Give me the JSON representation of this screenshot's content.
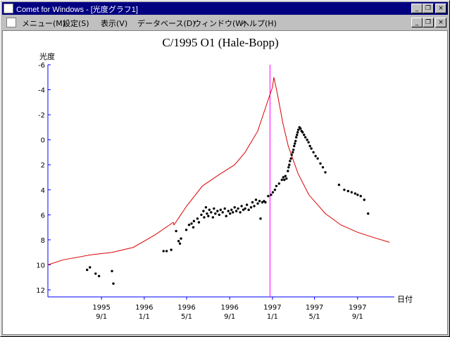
{
  "window": {
    "title": "Comet for Windows - [光度グラフ1]",
    "controls": {
      "minimize": "_",
      "restore": "❐",
      "close": "×"
    }
  },
  "menubar": {
    "items": [
      "メニュー(M)",
      "設定(S)",
      "表示(V)",
      "データベース(D)",
      "ウィンドウ(W)",
      "ヘルプ(H)"
    ]
  },
  "colors": {
    "magnitude_curve": "#dd0000",
    "axis": "#0000ff",
    "perihelion_line": "#ff00ff",
    "points": "#000000"
  },
  "chart_data": {
    "type": "scatter",
    "title": "C/1995 O1 (Hale-Bopp)",
    "ylabel": "光度",
    "xlabel": "日付",
    "ylim": [
      -6,
      12
    ],
    "y_inverted": true,
    "yticks": [
      "-6",
      "-4",
      "-2",
      "0",
      "2",
      "4",
      "6",
      "8",
      "10",
      "12"
    ],
    "xlim": [
      "1995-04-01",
      "1997-12-15"
    ],
    "xticks": [
      {
        "date": "1995-09-01",
        "year": "1995",
        "day": "9/1"
      },
      {
        "date": "1996-01-01",
        "year": "1996",
        "day": "1/1"
      },
      {
        "date": "1996-05-01",
        "year": "1996",
        "day": "5/1"
      },
      {
        "date": "1996-09-01",
        "year": "1996",
        "day": "9/1"
      },
      {
        "date": "1997-01-01",
        "year": "1997",
        "day": "1/1"
      },
      {
        "date": "1997-05-01",
        "year": "1997",
        "day": "5/1"
      },
      {
        "date": "1997-09-01",
        "year": "1997",
        "day": "9/1"
      }
    ],
    "perihelion_date": "1996-12-25",
    "predicted_curve": [
      [
        "1995-04-01",
        10.0
      ],
      [
        "1995-05-15",
        9.6
      ],
      [
        "1995-08-01",
        9.2
      ],
      [
        "1995-10-01",
        9.0
      ],
      [
        "1995-12-01",
        8.6
      ],
      [
        "1996-02-01",
        7.6
      ],
      [
        "1996-03-24",
        6.6
      ],
      [
        "1996-03-26",
        6.8
      ],
      [
        "1996-05-01",
        5.3
      ],
      [
        "1996-06-15",
        3.7
      ],
      [
        "1996-08-01",
        2.8
      ],
      [
        "1996-09-15",
        2.0
      ],
      [
        "1996-10-15",
        1.0
      ],
      [
        "1996-11-20",
        -0.7
      ],
      [
        "1996-12-15",
        -2.8
      ],
      [
        "1997-01-01",
        -4.2
      ],
      [
        "1997-01-05",
        -5.0
      ],
      [
        "1997-01-15",
        -3.7
      ],
      [
        "1997-01-31",
        -1.3
      ],
      [
        "1997-02-15",
        0.5
      ],
      [
        "1997-03-15",
        2.7
      ],
      [
        "1997-04-15",
        4.4
      ],
      [
        "1997-06-01",
        5.9
      ],
      [
        "1997-07-15",
        6.8
      ],
      [
        "1997-09-01",
        7.4
      ],
      [
        "1997-10-15",
        7.8
      ],
      [
        "1997-12-01",
        8.2
      ]
    ],
    "observations": [
      [
        "1995-07-22",
        10.4
      ],
      [
        "1995-07-30",
        10.2
      ],
      [
        "1995-08-15",
        10.7
      ],
      [
        "1995-08-25",
        10.9
      ],
      [
        "1995-10-01",
        10.5
      ],
      [
        "1995-10-05",
        11.5
      ],
      [
        "1996-02-25",
        8.9
      ],
      [
        "1996-03-05",
        8.9
      ],
      [
        "1996-03-18",
        8.8
      ],
      [
        "1996-04-01",
        7.3
      ],
      [
        "1996-04-08",
        8.1
      ],
      [
        "1996-04-12",
        8.3
      ],
      [
        "1996-04-15",
        7.9
      ],
      [
        "1996-04-30",
        7.2
      ],
      [
        "1996-05-08",
        6.8
      ],
      [
        "1996-05-15",
        6.7
      ],
      [
        "1996-05-20",
        7.0
      ],
      [
        "1996-05-22",
        6.5
      ],
      [
        "1996-06-01",
        6.3
      ],
      [
        "1996-06-05",
        6.6
      ],
      [
        "1996-06-12",
        6.0
      ],
      [
        "1996-06-18",
        5.7
      ],
      [
        "1996-06-20",
        6.2
      ],
      [
        "1996-06-25",
        5.4
      ],
      [
        "1996-06-28",
        5.9
      ],
      [
        "1996-07-02",
        6.1
      ],
      [
        "1996-07-05",
        5.6
      ],
      [
        "1996-07-10",
        5.8
      ],
      [
        "1996-07-15",
        6.2
      ],
      [
        "1996-07-18",
        5.5
      ],
      [
        "1996-07-22",
        5.9
      ],
      [
        "1996-07-28",
        5.7
      ],
      [
        "1996-08-02",
        6.0
      ],
      [
        "1996-08-06",
        5.6
      ],
      [
        "1996-08-12",
        5.8
      ],
      [
        "1996-08-18",
        5.5
      ],
      [
        "1996-08-22",
        6.1
      ],
      [
        "1996-08-28",
        5.7
      ],
      [
        "1996-09-02",
        5.9
      ],
      [
        "1996-09-06",
        5.6
      ],
      [
        "1996-09-10",
        5.8
      ],
      [
        "1996-09-15",
        5.4
      ],
      [
        "1996-09-20",
        5.7
      ],
      [
        "1996-09-25",
        5.5
      ],
      [
        "1996-10-01",
        5.8
      ],
      [
        "1996-10-05",
        5.3
      ],
      [
        "1996-10-10",
        5.6
      ],
      [
        "1996-10-15",
        5.5
      ],
      [
        "1996-10-20",
        5.2
      ],
      [
        "1996-10-25",
        5.6
      ],
      [
        "1996-11-01",
        5.4
      ],
      [
        "1996-11-05",
        5.0
      ],
      [
        "1996-11-10",
        5.3
      ],
      [
        "1996-11-15",
        4.8
      ],
      [
        "1996-11-20",
        5.1
      ],
      [
        "1996-11-25",
        4.9
      ],
      [
        "1996-11-28",
        6.3
      ],
      [
        "1996-12-03",
        5.0
      ],
      [
        "1996-12-08",
        4.9
      ],
      [
        "1996-12-12",
        5.0
      ],
      [
        "1996-12-20",
        4.5
      ],
      [
        "1996-12-28",
        4.4
      ],
      [
        "1997-01-02",
        4.2
      ],
      [
        "1997-01-08",
        4.0
      ],
      [
        "1997-01-12",
        3.7
      ],
      [
        "1997-01-20",
        3.5
      ],
      [
        "1997-01-28",
        3.2
      ],
      [
        "1997-02-01",
        3.0
      ],
      [
        "1997-02-04",
        3.2
      ],
      [
        "1997-02-07",
        2.9
      ],
      [
        "1997-02-10",
        3.1
      ],
      [
        "1997-02-14",
        2.5
      ],
      [
        "1997-02-16",
        2.2
      ],
      [
        "1997-02-18",
        2.0
      ],
      [
        "1997-02-20",
        1.7
      ],
      [
        "1997-02-23",
        1.5
      ],
      [
        "1997-02-25",
        1.2
      ],
      [
        "1997-02-28",
        1.0
      ],
      [
        "1997-03-02",
        0.8
      ],
      [
        "1997-03-04",
        0.5
      ],
      [
        "1997-03-06",
        0.3
      ],
      [
        "1997-03-08",
        0.1
      ],
      [
        "1997-03-10",
        -0.2
      ],
      [
        "1997-03-12",
        -0.4
      ],
      [
        "1997-03-14",
        -0.6
      ],
      [
        "1997-03-16",
        -0.8
      ],
      [
        "1997-03-19",
        -1.0
      ],
      [
        "1997-03-22",
        -0.9
      ],
      [
        "1997-03-25",
        -0.7
      ],
      [
        "1997-03-28",
        -0.6
      ],
      [
        "1997-04-01",
        -0.4
      ],
      [
        "1997-04-05",
        -0.2
      ],
      [
        "1997-04-10",
        0.0
      ],
      [
        "1997-04-14",
        0.2
      ],
      [
        "1997-04-18",
        0.5
      ],
      [
        "1997-04-22",
        0.7
      ],
      [
        "1997-04-28",
        1.0
      ],
      [
        "1997-05-04",
        1.3
      ],
      [
        "1997-05-10",
        1.5
      ],
      [
        "1997-05-18",
        1.9
      ],
      [
        "1997-05-25",
        2.2
      ],
      [
        "1997-06-01",
        2.6
      ],
      [
        "1997-07-10",
        3.6
      ],
      [
        "1997-07-25",
        4.0
      ],
      [
        "1997-08-05",
        4.1
      ],
      [
        "1997-08-15",
        4.2
      ],
      [
        "1997-08-25",
        4.3
      ],
      [
        "1997-09-01",
        4.4
      ],
      [
        "1997-09-10",
        4.5
      ],
      [
        "1997-09-20",
        4.8
      ],
      [
        "1997-10-01",
        5.9
      ]
    ]
  }
}
